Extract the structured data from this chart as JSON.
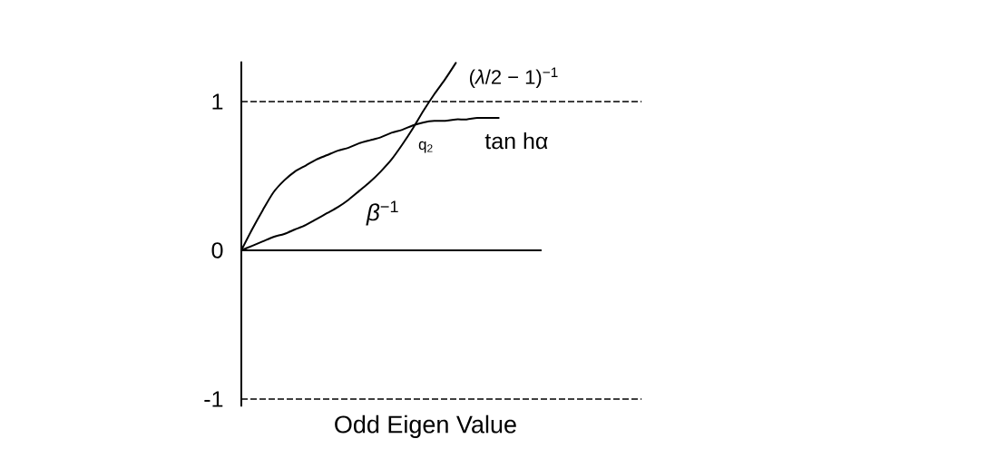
{
  "chart_data": {
    "type": "line",
    "xlabel": "Odd Eigen Value",
    "categories": [
      null,
      null,
      null,
      null,
      null,
      null,
      null,
      null,
      null,
      null,
      null,
      null,
      null,
      null,
      null,
      null,
      null,
      null,
      null,
      null,
      null,
      null,
      null,
      null,
      null,
      null,
      null,
      null,
      null
    ],
    "series": [
      {
        "name": "tan hα",
        "color": "#000000",
        "values": [
          0,
          0.14,
          0.27,
          0.39,
          0.47,
          0.53,
          0.57,
          0.61,
          0.64,
          0.67,
          0.69,
          0.72,
          0.74,
          0.76,
          0.79,
          0.81,
          0.84,
          0.86,
          0.87,
          0.87,
          0.88,
          0.88,
          0.89,
          0.89,
          0.89,
          null,
          null,
          null,
          null
        ]
      },
      {
        "name": "(*λ*/2 − 1)$^{−1}$",
        "color": "#000000",
        "values": [
          0,
          0.03,
          0.06,
          0.09,
          0.11,
          0.14,
          0.17,
          0.21,
          0.25,
          0.29,
          0.34,
          0.4,
          0.46,
          0.53,
          0.61,
          0.71,
          0.82,
          0.94,
          1.05,
          1.15,
          1.26,
          null,
          null,
          null,
          null,
          null,
          null,
          null,
          null
        ]
      }
    ],
    "ylim": [
      -1.05,
      1.27
    ],
    "yticks": [
      -1,
      0,
      1
    ],
    "tick_labels": "y",
    "marker": "none",
    "line_style": "solid",
    "ref_lines": [
      {
        "axis": "y",
        "value": 1,
        "line_style": "dashed",
        "color": "#000000"
      },
      {
        "axis": "y",
        "value": -1,
        "line_style": "dashed",
        "color": "#000000"
      }
    ],
    "annotations": [
      "q$_{2}$",
      "*β*$^{−1}$"
    ]
  }
}
